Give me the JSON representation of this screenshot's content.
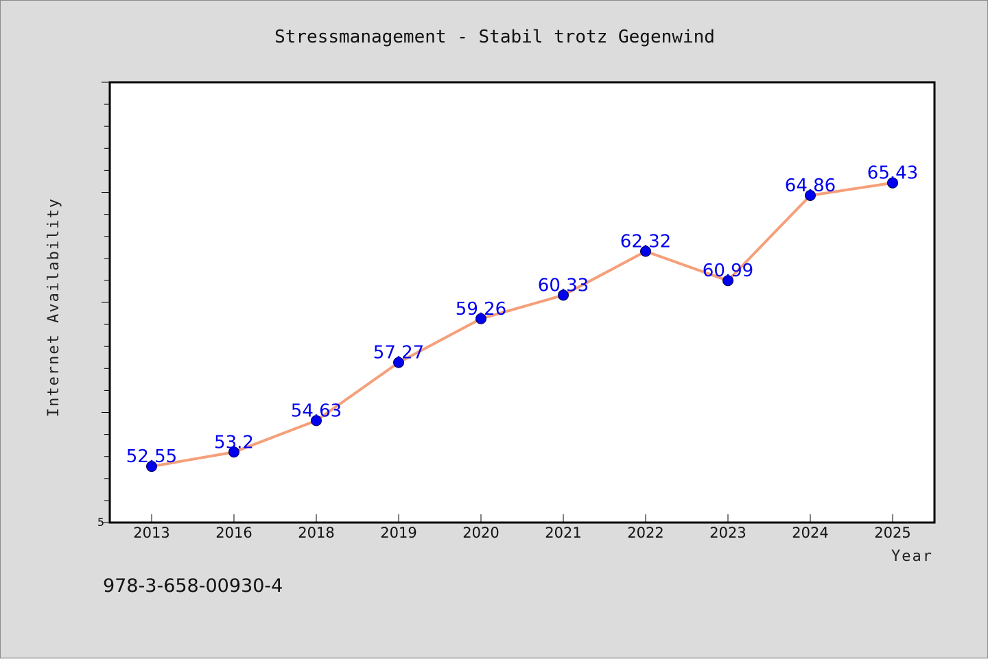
{
  "chart_data": {
    "type": "line",
    "title": "Stressmanagement - Stabil trotz Gegenwind",
    "xlabel": "Year",
    "ylabel": "Internet Availability",
    "categories": [
      "2013",
      "2016",
      "2018",
      "2019",
      "2020",
      "2021",
      "2022",
      "2023",
      "2024",
      "2025"
    ],
    "series": [
      {
        "values": [
          52.55,
          53.2,
          54.63,
          57.27,
          59.26,
          60.33,
          62.32,
          60.99,
          64.86,
          65.43
        ],
        "line_color": "#f5a07a",
        "marker_color": "#0000ee"
      }
    ],
    "data_labels": [
      "52.55",
      "53.2",
      "54.63",
      "57.27",
      "59.26",
      "60.33",
      "62.32",
      "60.99",
      "64.86",
      "65.43"
    ],
    "data_label_color": "#0000ee",
    "ylim": [
      50,
      70
    ],
    "yticks_labeled": [
      "5"
    ],
    "grid": false,
    "legend": "none"
  },
  "footer": {
    "isbn": "978-3-658-00930-4"
  }
}
